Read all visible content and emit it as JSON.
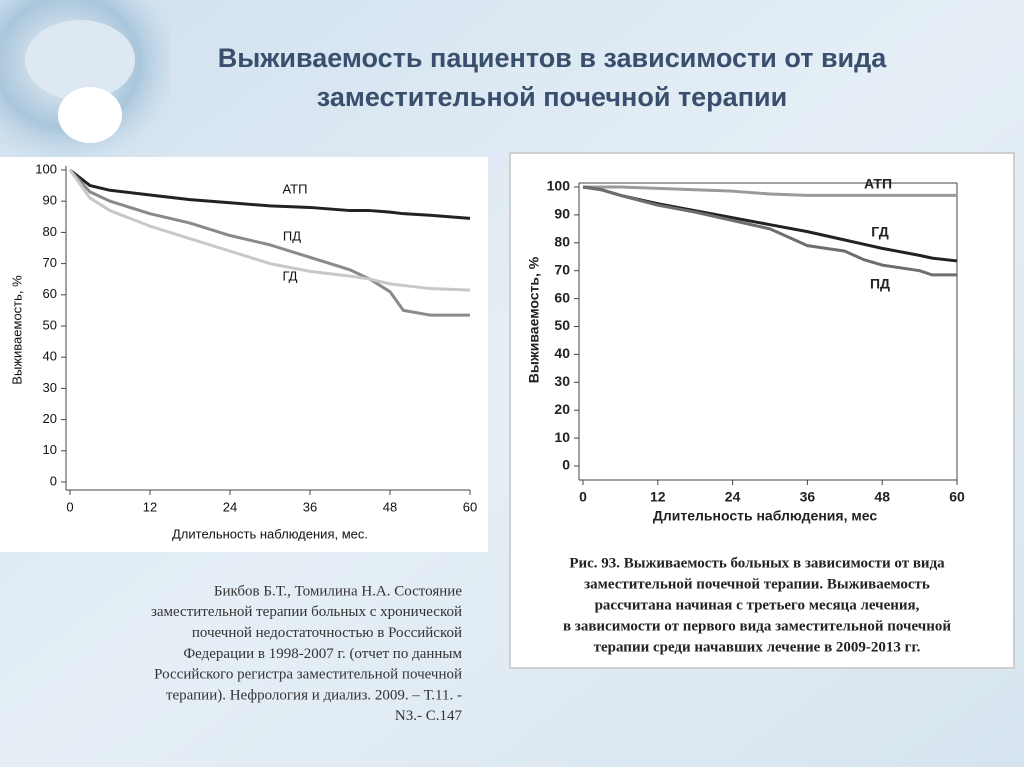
{
  "slide": {
    "title": [
      "Выживаемость пациентов в зависимости от вида",
      "заместительной почечной терапии"
    ],
    "citation": [
      "Бикбов Б.Т., Томилина Н.А. Состояние",
      "заместительной терапии больных с хронической",
      "почечной недостаточностью в Российской",
      "Федерации в 1998-2007 г. (отчет по данным",
      "Российского регистра заместительной почечной",
      "терапии). Нефрология и диализ. 2009. – Т.11. -",
      "N3.- С.147"
    ]
  },
  "chart_data": [
    {
      "type": "line",
      "xlabel": "Длительность наблюдения, мес.",
      "ylabel": "Выживаемость, %",
      "x": [
        0,
        3,
        6,
        12,
        18,
        24,
        30,
        36,
        42,
        45,
        48,
        50,
        54,
        60
      ],
      "series": [
        {
          "name": "АТП",
          "color": "#222222",
          "values": [
            100,
            95,
            93.5,
            92,
            90.5,
            89.5,
            88.5,
            88,
            87,
            87,
            86.5,
            86,
            85.5,
            84.5
          ]
        },
        {
          "name": "ПД",
          "color": "#8a8a8a",
          "values": [
            100,
            93,
            90,
            86,
            83,
            79,
            76,
            72,
            68,
            65,
            61,
            55,
            53.5,
            53.5
          ]
        },
        {
          "name": "ГД",
          "color": "#c8c8c8",
          "values": [
            100,
            91,
            87,
            82,
            78,
            74,
            70,
            67.5,
            66,
            65,
            63.5,
            63,
            62,
            61.5
          ]
        }
      ],
      "xlim": [
        0,
        60
      ],
      "xticks": [
        0,
        12,
        24,
        36,
        48,
        60
      ],
      "ylim": [
        0,
        100
      ],
      "yticks": [
        0,
        10,
        20,
        30,
        40,
        50,
        60,
        70,
        80,
        90,
        100
      ]
    },
    {
      "type": "line",
      "xlabel": "Длительность наблюдения, мес",
      "ylabel": "Выживаемость, %",
      "caption": [
        "Рис. 93. Выживаемость больных в зависимости от вида",
        "заместительной почечной терапии. Выживаемость",
        "рассчитана начиная с третьего месяца лечения,",
        "в зависимости от первого вида заместительной почечной",
        "терапии среди начавших лечение в 2009-2013 гг."
      ],
      "x": [
        0,
        3,
        6,
        12,
        18,
        24,
        30,
        36,
        42,
        45,
        48,
        54,
        56,
        60
      ],
      "series": [
        {
          "name": "АТП",
          "color": "#9a9a9a",
          "values": [
            100,
            100,
            100,
            99.5,
            99,
            98.5,
            97.5,
            97,
            97,
            97,
            97,
            97,
            97,
            97
          ]
        },
        {
          "name": "ГД",
          "color": "#222222",
          "values": [
            100,
            99,
            97,
            94,
            91.5,
            89,
            86.5,
            84,
            81,
            79.5,
            78,
            75.5,
            74.5,
            73.5
          ]
        },
        {
          "name": "ПД",
          "color": "#6e6e6e",
          "values": [
            100,
            99,
            97,
            93.5,
            91,
            88,
            85,
            79,
            77,
            74,
            72,
            70,
            68.5,
            68.5
          ]
        }
      ],
      "xlim": [
        0,
        60
      ],
      "xticks": [
        0,
        12,
        24,
        36,
        48,
        60
      ],
      "ylim": [
        0,
        100
      ],
      "yticks": [
        0,
        10,
        20,
        30,
        40,
        50,
        60,
        70,
        80,
        90,
        100
      ]
    }
  ]
}
